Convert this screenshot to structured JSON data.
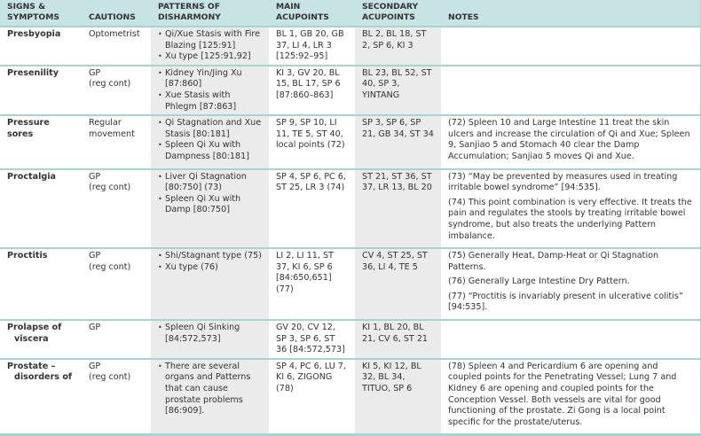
{
  "headers": [
    "SIGNS & SYMPTOMS",
    "CAUTIONS",
    "PATTERNS OF DISHARMONY",
    "MAIN ACUPOINTS",
    "SECONDARY ACUPOINTS",
    "NOTES"
  ],
  "rows": [
    {
      "symptom": "Presbyopia",
      "symptom2": "",
      "caution": "Optometrist",
      "caution2": "",
      "patterns": [
        "Qi/Xue Stasis with Fire Blazing [125:91]",
        "Xu type [125:91,92]"
      ],
      "main": "BL 1, GB 20, GB 37, LI 4, LR 3 [125:92–95]",
      "secondary": "BL 2, BL 18, ST 2, SP 6, KI 3",
      "notes": []
    },
    {
      "symptom": "Presenility",
      "symptom2": "",
      "caution": "GP",
      "caution2": "(reg cont)",
      "patterns": [
        "Kidney Yin/Jing Xu [87:860]",
        "Xue Stasis with Phlegm [87:863]"
      ],
      "main": "KI 3, GV 20, BL 15, BL 17, SP 6 [87:860–863]",
      "secondary": "BL 23, BL 52, ST 40, SP 3, YINTANG",
      "notes": []
    },
    {
      "symptom": "Pressure sores",
      "symptom2": "",
      "caution": "Regular movement",
      "caution2": "",
      "patterns": [
        "Qi Stagnation and Xue Stasis [80:181]",
        "Spleen Qi Xu with Dampness [80:181]"
      ],
      "main": "SP 9, SP 10, LI 11, TE 5, ST 40, local points  (72)",
      "secondary": "SP 3, SP 6, SP 21, GB 34, ST 34",
      "notes": [
        "(72) Spleen 10 and Large Intestine 11 treat the skin ulcers and increase the circulation of Qi and Xue; Spleen 9, Sanjiao 5 and Stomach 40 clear the Damp Accumulation; Sanjiao 5 moves Qi and Xue."
      ]
    },
    {
      "symptom": "Proctalgia",
      "symptom2": "",
      "caution": "GP",
      "caution2": "(reg cont)",
      "patterns": [
        "Liver Qi Stagnation [80:750] (73)",
        "Spleen Qi Xu with Damp [80:750]"
      ],
      "main": "SP 4, SP 6, PC 6, ST 25, LR 3 (74)",
      "secondary": "ST 21, ST 36, ST 37, LR 13, BL 20",
      "notes": [
        "(73) “May be prevented by measures used in treating irritable bowel syndrome” [94:535].",
        "(74) This point combination is very effective. It treats the pain and regulates the stools by treating irritable bowel syndrome, but also treats the underlying Pattern imbalance."
      ]
    },
    {
      "symptom": "Proctitis",
      "symptom2": "",
      "caution": "GP",
      "caution2": "(reg cont)",
      "patterns": [
        "Shi/Stagnant type (75)",
        "Xu type (76)"
      ],
      "main": "LI 2, LI 11, ST 37, KI 6, SP 6 [84:650,651] (77)",
      "secondary": "CV 4, ST 25, ST 36, LI 4, TE 5",
      "notes": [
        "(75) Generally Heat, Damp-Heat or Qi Stagnation Patterns.",
        "(76) Generally Large Intestine Dry Pattern.",
        "(77) “Proctitis is invariably present in ulcerative colitis” [94:535]."
      ]
    },
    {
      "symptom": "Prolapse of",
      "symptom2": "viscera",
      "caution": "GP",
      "caution2": "",
      "patterns": [
        "Spleen Qi Sinking [84:572,573]"
      ],
      "main": "GV 20, CV 12, SP 3, SP 6, ST 36 [84:572,573]",
      "secondary": "KI 1, BL 20, BL 21, CV 6, ST 21",
      "notes": []
    },
    {
      "symptom": "Prostate –",
      "symptom2": "disorders of",
      "caution": "GP",
      "caution2": "(reg cont)",
      "patterns": [
        "There are several organs and Patterns that can cause prostate problems [86:909]."
      ],
      "main": "SP 4, PC 6, LU 7, KI 6, ZIGONG (78)",
      "secondary": "KI 5, KI 12, BL 32, BL 34, TITUO, SP 6",
      "notes": [
        "(78) Spleen 4 and Pericardium 6 are opening and coupled points for the Penetrating Vessel; Lung 7 and Kidney 6 are opening and coupled points for the Conception Vessel. Both vessels are vital for good functioning of the prostate. Zi Gong is a local point specific for the prostate/uterus."
      ]
    }
  ]
}
